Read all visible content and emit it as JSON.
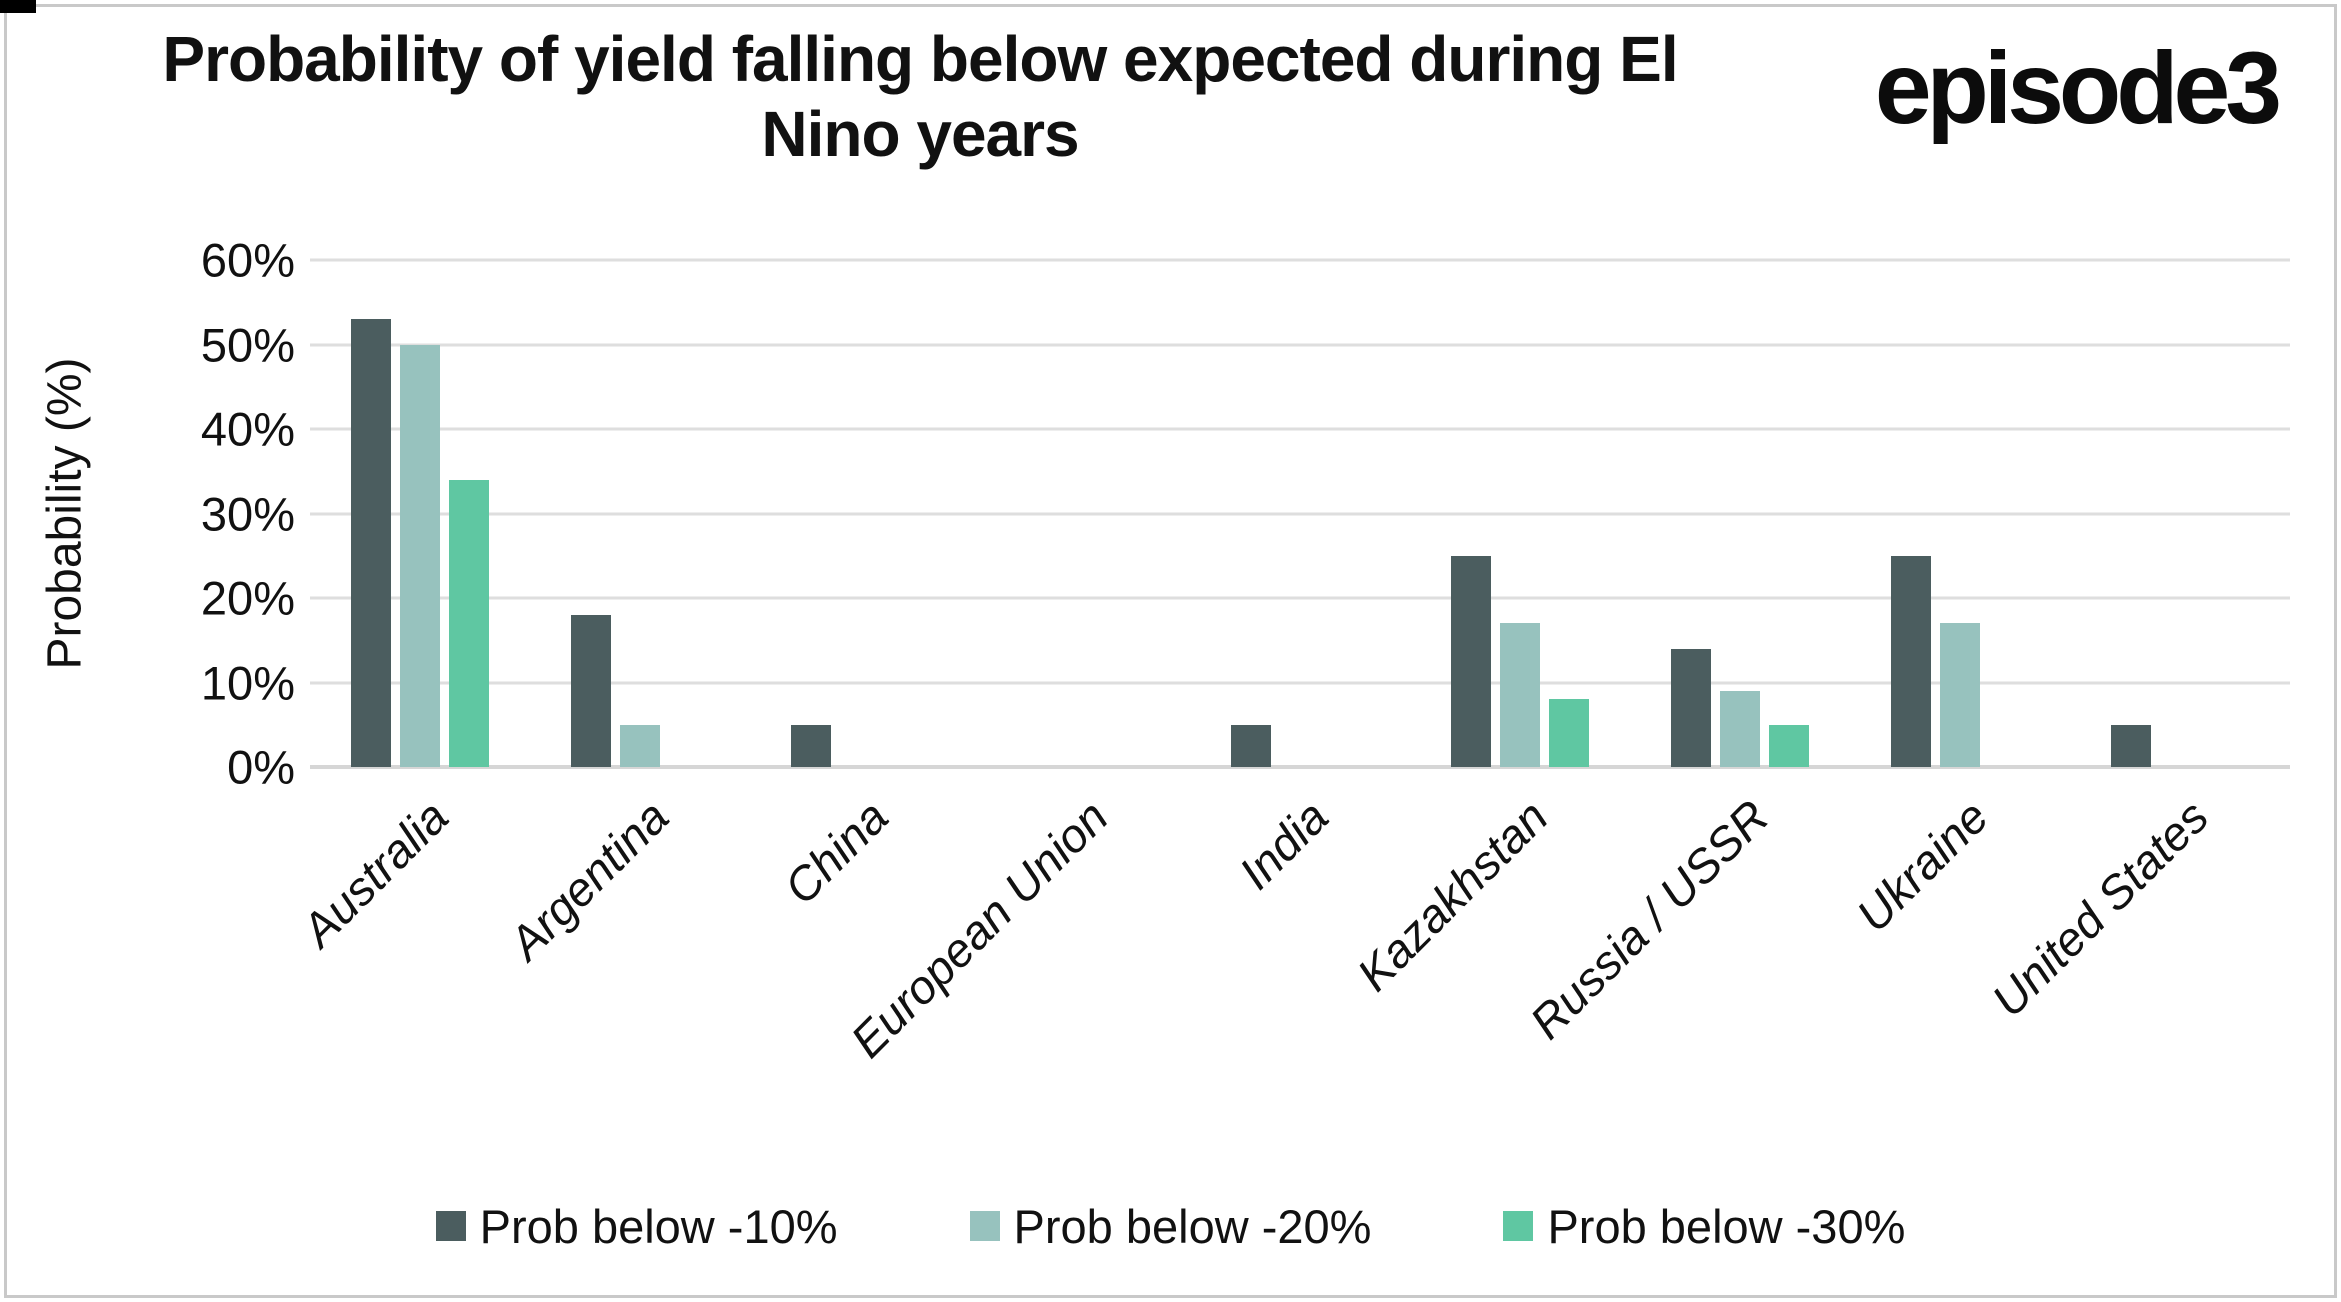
{
  "header": {
    "title_line1": "Probability of yield falling below expected during El",
    "title_line2": "Nino years",
    "logo_text": "episode3"
  },
  "chart_data": {
    "type": "bar",
    "title": "Probability of yield falling below expected during El Nino years",
    "xlabel": "",
    "ylabel": "Probability (%)",
    "ylim": [
      0,
      60
    ],
    "ytick_labels": [
      "60%",
      "50%",
      "40%",
      "30%",
      "20%",
      "10%",
      "0%"
    ],
    "grid": true,
    "legend_position": "bottom",
    "categories": [
      "Australia",
      "Argentina",
      "China",
      "European Union",
      "India",
      "Kazakhstan",
      "Russia / USSR",
      "Ukraine",
      "United States"
    ],
    "series": [
      {
        "name": "Prob below -10%",
        "color": "#4B5D5F",
        "values": [
          53,
          18,
          5,
          0,
          5,
          25,
          14,
          25,
          5
        ]
      },
      {
        "name": "Prob below -20%",
        "color": "#97C2BE",
        "values": [
          50,
          5,
          0,
          0,
          0,
          17,
          9,
          17,
          0
        ]
      },
      {
        "name": "Prob below -30%",
        "color": "#5FC7A2",
        "values": [
          34,
          0,
          0,
          0,
          0,
          8,
          5,
          0,
          0
        ]
      }
    ]
  }
}
